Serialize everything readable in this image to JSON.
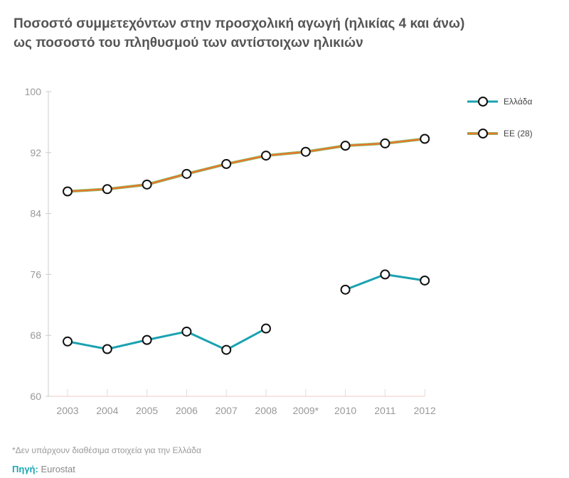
{
  "chart_data": {
    "type": "line",
    "title": [
      "Ποσοστό συμμετεχόντων στην προσχολική αγωγή (ηλικίας 4 και άνω)",
      "ως ποσοστό του πληθυσμού των αντίστοιχων ηλικιών"
    ],
    "categories": [
      "2003",
      "2004",
      "2005",
      "2006",
      "2007",
      "2008",
      "2009*",
      "2010",
      "2011",
      "2012"
    ],
    "yticks": [
      60,
      68,
      76,
      84,
      92,
      100
    ],
    "ylim": [
      60,
      100
    ],
    "grid": false,
    "legend": "top-right",
    "series": [
      {
        "name": "Ελλάδα",
        "color": "#1aa2b0",
        "values": [
          67.2,
          66.2,
          67.4,
          68.5,
          66.1,
          68.9,
          null,
          74.0,
          76.0,
          75.2
        ]
      },
      {
        "name": "ΕΕ (28)",
        "color": "#e8772e",
        "values": [
          86.9,
          87.2,
          87.8,
          89.2,
          90.5,
          91.6,
          92.1,
          92.9,
          93.2,
          93.8
        ]
      }
    ],
    "footnote": "*Δεν υπάρχουν διαθέσιμα στοιχεία για την Ελλάδα",
    "source_label": "Πηγή:",
    "source": "Eurostat"
  }
}
